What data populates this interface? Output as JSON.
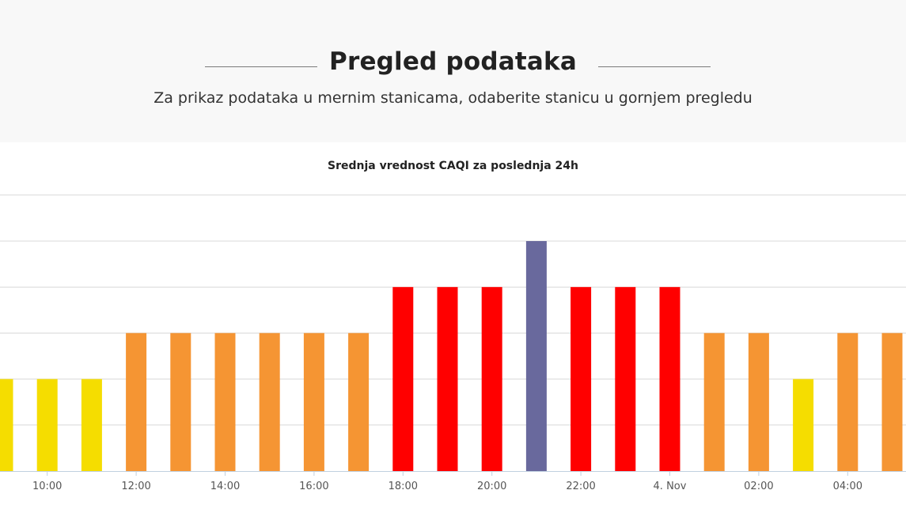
{
  "header": {
    "title": "Pregled podataka",
    "subtitle": "Za prikaz podataka u mernim stanicama, odaberite stanicu u gornjem pregledu"
  },
  "chart_data": {
    "type": "bar",
    "title": "Srednja vrednost CAQI za poslednja 24h",
    "xlabel": "",
    "ylabel": "",
    "ylim": [
      0,
      6
    ],
    "grid": true,
    "legend": "none",
    "tick_labels": [
      "10:00",
      "12:00",
      "14:00",
      "16:00",
      "18:00",
      "20:00",
      "22:00",
      "4. Nov",
      "02:00",
      "04:00"
    ],
    "categories": [
      "09:00",
      "10:00",
      "11:00",
      "12:00",
      "13:00",
      "14:00",
      "15:00",
      "16:00",
      "17:00",
      "18:00",
      "19:00",
      "20:00",
      "21:00",
      "22:00",
      "23:00",
      "00:00",
      "01:00",
      "02:00",
      "03:00",
      "04:00",
      "05:00"
    ],
    "values": [
      2,
      2,
      2,
      3,
      3,
      3,
      3,
      3,
      3,
      4,
      4,
      4,
      5,
      4,
      4,
      4,
      3,
      3,
      2,
      3,
      3
    ],
    "level_colors": {
      "2": "#f5dd00",
      "3": "#f59533",
      "4": "#ff0000",
      "5": "#69699d"
    }
  }
}
